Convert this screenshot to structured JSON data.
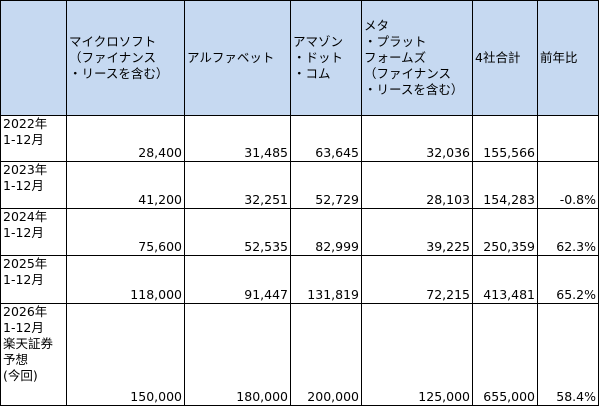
{
  "table": {
    "headers": [
      "",
      "マイクロソフト\n（ファイナンス\n・リースを含む）",
      "アルファベット",
      "アマゾン\n・ドット\n・コム",
      "メタ\n・プラット\nフォームズ\n（ファイナンス\n・リースを含む）",
      "4社合計",
      "前年比"
    ],
    "rows": [
      {
        "period": "2022年\n1-12月",
        "values": [
          "28,400",
          "31,485",
          "63,645",
          "32,036",
          "155,566",
          ""
        ]
      },
      {
        "period": "2023年\n1-12月",
        "values": [
          "41,200",
          "32,251",
          "52,729",
          "28,103",
          "154,283",
          "-0.8%"
        ]
      },
      {
        "period": "2024年\n1-12月",
        "values": [
          "75,600",
          "52,535",
          "82,999",
          "39,225",
          "250,359",
          "62.3%"
        ]
      },
      {
        "period": "2025年\n1-12月",
        "values": [
          "118,000",
          "91,447",
          "131,819",
          "72,215",
          "413,481",
          "65.2%"
        ]
      },
      {
        "period": "2026年\n1-12月\n楽天証券\n予想\n(今回)",
        "values": [
          "150,000",
          "180,000",
          "200,000",
          "125,000",
          "655,000",
          "58.4%"
        ]
      }
    ]
  },
  "colors": {
    "header_background": "#c6d9f1",
    "cell_background": "#ffffff",
    "border": "#000000"
  }
}
